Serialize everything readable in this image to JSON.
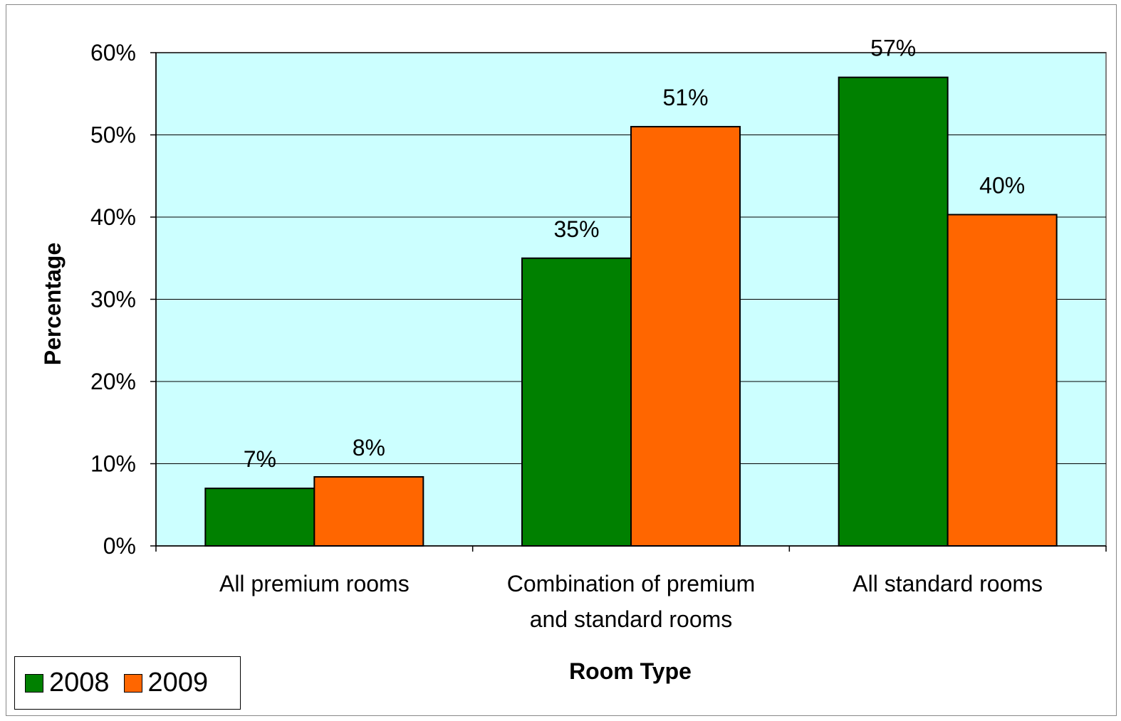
{
  "colors": {
    "plot_background": "#ccffff",
    "series_2008": "#008000",
    "series_2009": "#ff6600",
    "gridline": "#000000"
  },
  "chart_data": {
    "type": "bar",
    "categories": [
      [
        "All premium rooms"
      ],
      [
        "Combination of premium",
        "and standard rooms"
      ],
      [
        "All standard rooms"
      ]
    ],
    "series": [
      {
        "name": "2008",
        "values": [
          7,
          35,
          57
        ],
        "labels": [
          "7%",
          "35%",
          "57%"
        ]
      },
      {
        "name": "2009",
        "values": [
          8.4,
          51,
          40.3
        ],
        "labels": [
          "8%",
          "51%",
          "40%"
        ]
      }
    ],
    "xlabel": "Room Type",
    "ylabel": "Percentage",
    "ylim": [
      0,
      60
    ],
    "yticks": [
      "0%",
      "10%",
      "20%",
      "30%",
      "40%",
      "50%",
      "60%"
    ],
    "grid": true,
    "legend_position": "bottom-left"
  }
}
